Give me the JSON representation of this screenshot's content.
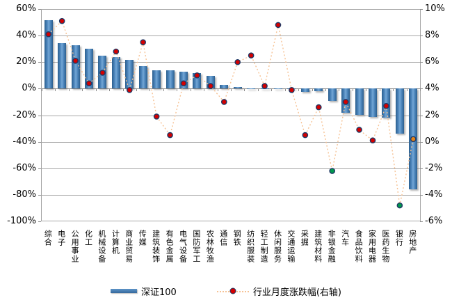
{
  "chart_data": {
    "type": "bar+scatter dual-axis combo",
    "categories": [
      "综合",
      "电子",
      "公用事业",
      "化工",
      "机械设备",
      "计算机",
      "商业贸易",
      "传媒",
      "建筑装饰",
      "有色金属",
      "电气设备",
      "国防军工",
      "农林牧渔",
      "通信",
      "钢铁",
      "纺织服装",
      "轻工制造",
      "休闲服务",
      "交通运输",
      "采掘",
      "建筑材料",
      "非银金融",
      "汽车",
      "食品饮料",
      "家用电器",
      "医药生物",
      "银行",
      "房地产"
    ],
    "series": [
      {
        "name": "深证100",
        "type": "bar",
        "axis": "left",
        "unit": "%",
        "values": [
          51.5,
          34.5,
          32.5,
          30,
          25,
          24,
          21.5,
          17,
          14,
          14,
          13,
          11.5,
          9.5,
          2.8,
          1,
          -0.5,
          -0.5,
          -0.2,
          -0.3,
          -2.5,
          -2,
          -9,
          -18,
          -19.5,
          -21.5,
          -22,
          -34,
          -76
        ]
      },
      {
        "name": "行业月度涨跌幅(右轴)",
        "type": "scatter-dotted-line",
        "axis": "right",
        "unit": "%",
        "values": [
          8.1,
          9.1,
          6.1,
          4.4,
          5.2,
          6.8,
          3.9,
          7.5,
          1.9,
          0.5,
          4.4,
          5.0,
          4.2,
          3.0,
          6.0,
          6.5,
          4.2,
          8.8,
          3.9,
          0.5,
          2.6,
          -2.2,
          3.0,
          0.9,
          0.1,
          2.7,
          -4.8,
          0.2
        ],
        "point_colors": [
          "red",
          "red",
          "red",
          "red",
          "red",
          "red",
          "red",
          "red",
          "red",
          "red",
          "red",
          "red",
          "red",
          "red",
          "red",
          "red",
          "red",
          "red",
          "red",
          "red",
          "red",
          "green",
          "red",
          "red",
          "red",
          "red",
          "green",
          "orange"
        ]
      }
    ],
    "left_axis": {
      "max": 60,
      "min": -100,
      "tick_step": 20,
      "tick_labels": [
        "60%",
        "40%",
        "20%",
        "0%",
        "-20%",
        "-40%",
        "-60%",
        "-80%",
        "-100%"
      ]
    },
    "right_axis": {
      "max": 10,
      "min": -6,
      "tick_step": 2,
      "tick_labels": [
        "10%",
        "8%",
        "6%",
        "4%",
        "2%",
        "0%",
        "-2%",
        "-4%",
        "-6%"
      ]
    },
    "grid": true,
    "legend_position": "bottom",
    "colors": {
      "bar": "#3D76AE",
      "connector_line": "#F6C294",
      "dot_red": "#D40000",
      "dot_green": "#00994D",
      "dot_orange": "#E2821A",
      "dot_border": "#1F3864",
      "gridline": "#A6A6A6"
    }
  }
}
